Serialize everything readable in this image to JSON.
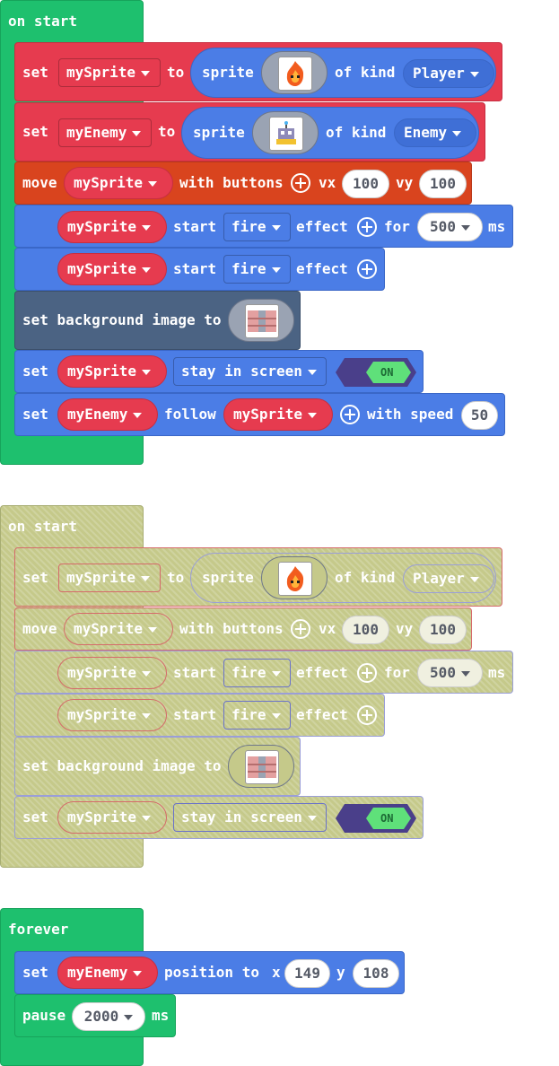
{
  "stack1": {
    "hat_label": "on start",
    "b1": {
      "set": "set",
      "var": "mySprite",
      "to": "to",
      "sprite": "sprite",
      "of_kind": "of kind",
      "kind": "Player"
    },
    "b2": {
      "set": "set",
      "var": "myEnemy",
      "to": "to",
      "sprite": "sprite",
      "of_kind": "of kind",
      "kind": "Enemy"
    },
    "b3": {
      "move": "move",
      "var": "mySprite",
      "with_buttons": "with buttons",
      "vx": "vx",
      "vx_val": "100",
      "vy": "vy",
      "vy_val": "100"
    },
    "b4": {
      "var": "mySprite",
      "start": "start",
      "effect_name": "fire",
      "effect": "effect",
      "for": "for",
      "duration": "500",
      "ms": "ms"
    },
    "b5": {
      "var": "mySprite",
      "start": "start",
      "effect_name": "fire",
      "effect": "effect"
    },
    "b6": {
      "label": "set background image to"
    },
    "b7": {
      "set": "set",
      "var": "mySprite",
      "flag": "stay in screen",
      "toggle": "ON"
    },
    "b8": {
      "set": "set",
      "var": "myEnemy",
      "follow": "follow",
      "target": "mySprite",
      "with_speed": "with speed",
      "speed": "50"
    }
  },
  "stack2": {
    "hat_label": "on start",
    "b1": {
      "set": "set",
      "var": "mySprite",
      "to": "to",
      "sprite": "sprite",
      "of_kind": "of kind",
      "kind": "Player"
    },
    "b3": {
      "move": "move",
      "var": "mySprite",
      "with_buttons": "with buttons",
      "vx": "vx",
      "vx_val": "100",
      "vy": "vy",
      "vy_val": "100"
    },
    "b4": {
      "var": "mySprite",
      "start": "start",
      "effect_name": "fire",
      "effect": "effect",
      "for": "for",
      "duration": "500",
      "ms": "ms"
    },
    "b5": {
      "var": "mySprite",
      "start": "start",
      "effect_name": "fire",
      "effect": "effect"
    },
    "b6": {
      "label": "set background image to"
    },
    "b7": {
      "set": "set",
      "var": "mySprite",
      "flag": "stay in screen",
      "toggle": "ON"
    }
  },
  "stack3": {
    "hat_label": "forever",
    "b1": {
      "set": "set",
      "var": "myEnemy",
      "position_to": "position to",
      "x": "x",
      "x_val": "149",
      "y": "y",
      "y_val": "108"
    },
    "b2": {
      "pause": "pause",
      "duration": "2000",
      "ms": "ms"
    }
  },
  "colors": {
    "events": "#1ec06e",
    "sprites": "#4b7de6",
    "controller": "#d9441e",
    "variables": "#e63b4f",
    "scene": "#4b6383",
    "toggle_on": "#5fe07a"
  },
  "icons": [
    "fire-sprite-icon",
    "robot-sprite-icon",
    "brick-background-icon",
    "add-circle-icon",
    "dropdown-caret-icon"
  ]
}
